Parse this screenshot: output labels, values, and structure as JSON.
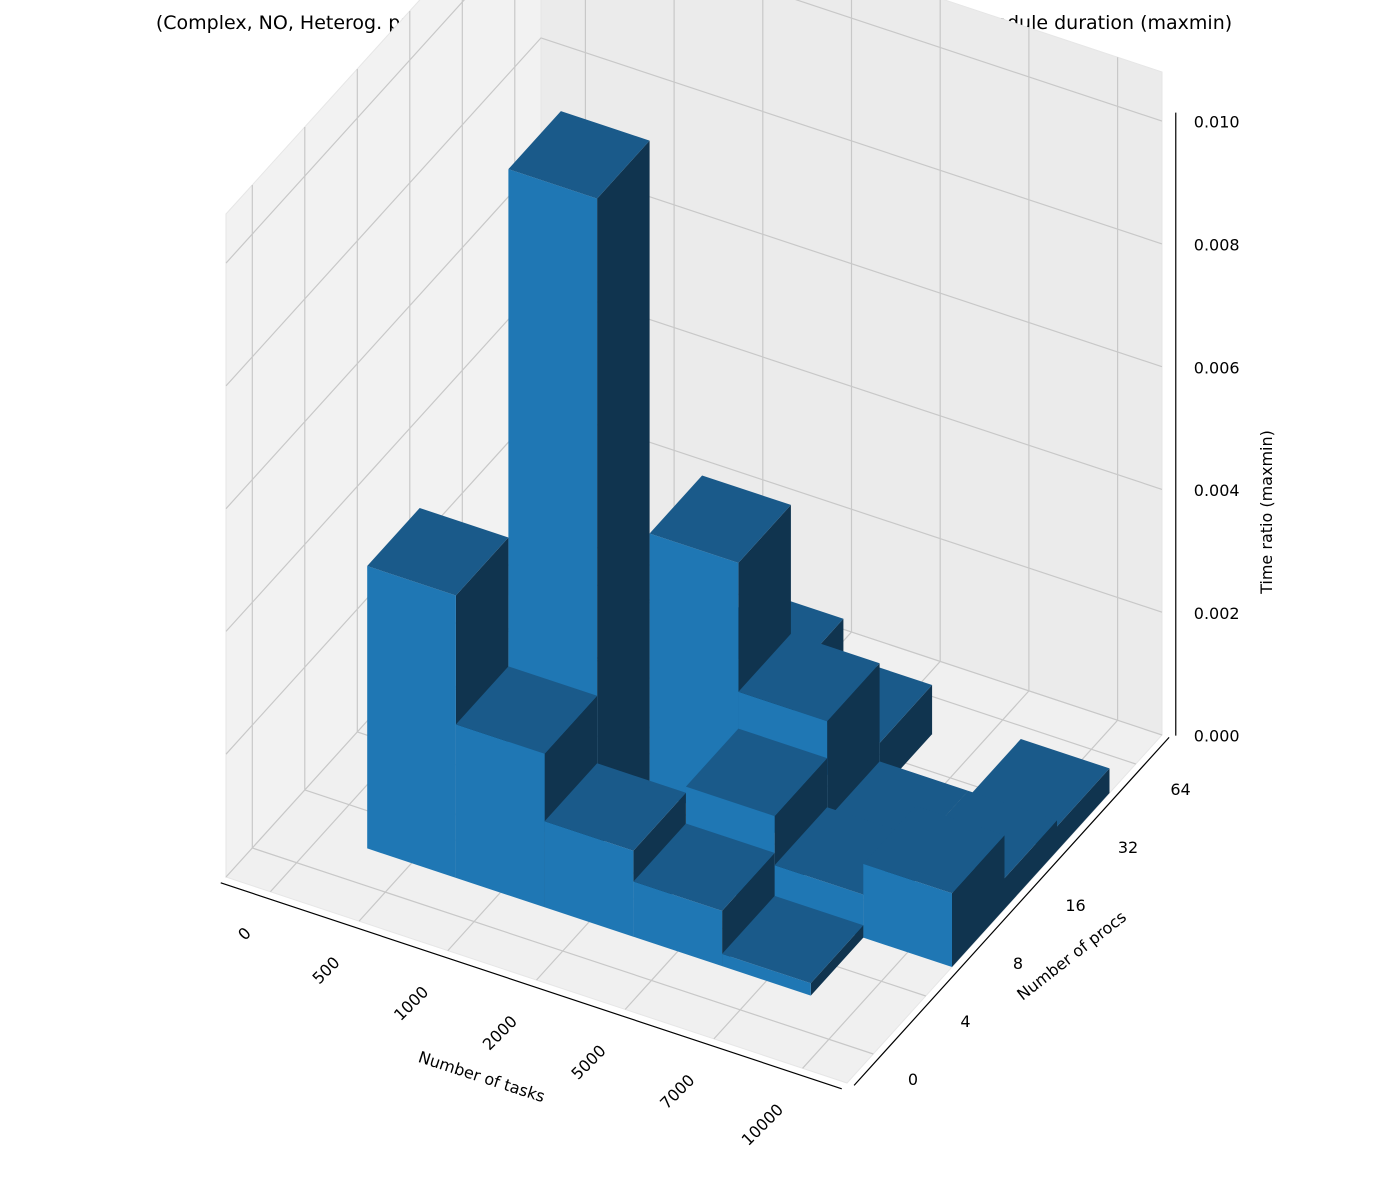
{
  "chart_data": {
    "type": "bar3d",
    "title": "(Complex, NO, Heterog. proc., Layered) Ratio of algorithm schedule duration to GC1 schedule duration (maxmin)",
    "xlabel": "Number of tasks",
    "ylabel": "Number of procs",
    "zlabel": "Time ratio (maxmin)",
    "x_ticks": [
      "0",
      "500",
      "1000",
      "2000",
      "5000",
      "7000",
      "10000"
    ],
    "y_ticks": [
      "0",
      "4",
      "8",
      "16",
      "32",
      "64"
    ],
    "z_ticks": [
      "0.000",
      "0.002",
      "0.004",
      "0.006",
      "0.008",
      "0.010"
    ],
    "zlim": [
      0,
      0.0108
    ],
    "bar_color": "#1f77b4",
    "grid": true,
    "bars": [
      {
        "tasks": "500",
        "procs": "4",
        "value": 0.0046
      },
      {
        "tasks": "1000",
        "procs": "8",
        "value": 0.0106
      },
      {
        "tasks": "1000",
        "procs": "4",
        "value": 0.0025
      },
      {
        "tasks": "2000",
        "procs": "4",
        "value": 0.0014
      },
      {
        "tasks": "5000",
        "procs": "4",
        "value": 0.0009
      },
      {
        "tasks": "2000",
        "procs": "16",
        "value": 0.0042
      },
      {
        "tasks": "5000",
        "procs": "16",
        "value": 0.0021
      },
      {
        "tasks": "5000",
        "procs": "8",
        "value": 0.0015
      },
      {
        "tasks": "2000",
        "procs": "32",
        "value": 0.0014
      },
      {
        "tasks": "5000",
        "procs": "32",
        "value": 0.0008
      },
      {
        "tasks": "7000",
        "procs": "8",
        "value": 0.0007
      },
      {
        "tasks": "7000",
        "procs": "16",
        "value": 0.0005
      },
      {
        "tasks": "10000",
        "procs": "8",
        "value": 0.0012
      },
      {
        "tasks": "10000",
        "procs": "16",
        "value": 0.0005
      },
      {
        "tasks": "10000",
        "procs": "32",
        "value": 0.0004
      },
      {
        "tasks": "7000",
        "procs": "4",
        "value": 0.0002
      }
    ]
  }
}
